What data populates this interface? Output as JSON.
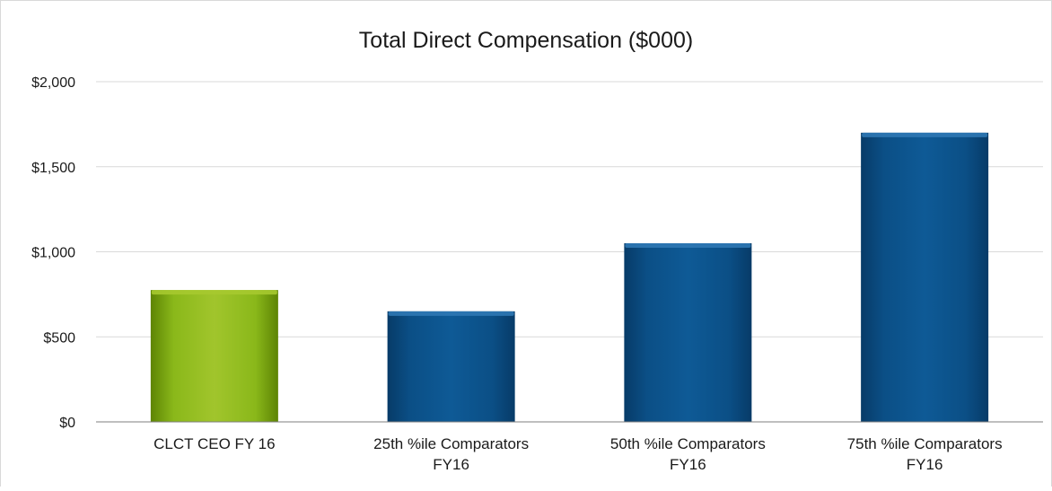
{
  "chart_data": {
    "type": "bar",
    "title": "Total Direct Compensation ($000)",
    "xlabel": "",
    "ylabel": "",
    "ylim": [
      0,
      2000
    ],
    "yticks": [
      0,
      500,
      1000,
      1500,
      2000
    ],
    "ytick_labels": [
      "$0",
      "$500",
      "$1,000",
      "$1,500",
      "$2,000"
    ],
    "categories": [
      [
        "CLCT CEO FY 16"
      ],
      [
        "25th %ile Comparators",
        "FY16"
      ],
      [
        "50th %ile Comparators",
        "FY16"
      ],
      [
        "75th %ile Comparators",
        "FY16"
      ]
    ],
    "values": [
      775,
      650,
      1050,
      1700
    ],
    "grid": true,
    "legend": "none",
    "colors": {
      "highlight": "#7eaa0f",
      "highlight_light": "#a6c92f",
      "highlight_dark": "#5d8404",
      "bar": "#0b4f86",
      "bar_light": "#2f78b4",
      "bar_dark": "#073b68",
      "grid": "#d9d9d9",
      "axis": "#7f7f7f",
      "text": "#1a1a1a"
    },
    "highlight_index": 0
  }
}
